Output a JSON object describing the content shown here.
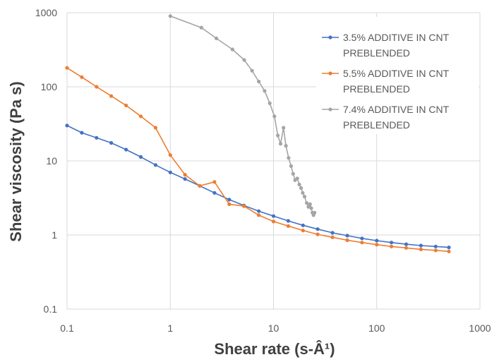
{
  "chart_data": {
    "type": "scatter",
    "title": "",
    "xlabel": "Shear rate (s-Â¹)",
    "ylabel": "Shear viscosity (Pa s)",
    "xscale": "log",
    "yscale": "log",
    "xlim": [
      0.1,
      1000
    ],
    "ylim": [
      0.1,
      1000
    ],
    "x_ticks": [
      "0.1",
      "1",
      "10",
      "100",
      "1000"
    ],
    "y_ticks": [
      "0.1",
      "1",
      "10",
      "100",
      "1000"
    ],
    "grid": true,
    "legend_position": "top-right",
    "series": [
      {
        "name_lines": [
          "3.5% ADDITIVE IN CNT",
          "PREBLENDED"
        ],
        "color": "#4472C4",
        "x": [
          0.1,
          0.1389,
          0.193,
          0.268,
          0.3728,
          0.518,
          0.7197,
          1.0,
          1.389,
          1.93,
          2.68,
          3.728,
          5.18,
          7.197,
          10.0,
          13.89,
          19.3,
          26.8,
          37.28,
          51.8,
          71.97,
          100.0,
          138.9,
          193.0,
          268.0,
          372.8,
          500.0
        ],
        "y": [
          30,
          24,
          20.5,
          17.5,
          14.2,
          11.3,
          8.8,
          7.0,
          5.7,
          4.6,
          3.7,
          3.0,
          2.5,
          2.1,
          1.8,
          1.55,
          1.35,
          1.2,
          1.07,
          0.98,
          0.9,
          0.84,
          0.79,
          0.75,
          0.72,
          0.7,
          0.68
        ]
      },
      {
        "name_lines": [
          "5.5% ADDITIVE IN CNT",
          "PREBLENDED"
        ],
        "color": "#ED7D31",
        "x": [
          0.1,
          0.1389,
          0.193,
          0.268,
          0.3728,
          0.518,
          0.7197,
          1.0,
          1.389,
          1.93,
          2.68,
          3.728,
          5.18,
          7.197,
          10.0,
          13.89,
          19.3,
          26.8,
          37.28,
          51.8,
          71.97,
          100.0,
          138.9,
          193.0,
          268.0,
          372.8,
          500.0
        ],
        "y": [
          180,
          135,
          100,
          75,
          56,
          40,
          28,
          12,
          6.5,
          4.6,
          5.2,
          2.6,
          2.45,
          1.85,
          1.52,
          1.32,
          1.15,
          1.02,
          0.93,
          0.85,
          0.79,
          0.74,
          0.7,
          0.67,
          0.64,
          0.62,
          0.6
        ]
      },
      {
        "name_lines": [
          "7.4% ADDITIVE IN CNT",
          "PREBLENDED"
        ],
        "color": "#A5A5A5",
        "x": [
          1.0,
          2.0,
          2.8,
          4.0,
          5.2,
          6.2,
          7.2,
          8.2,
          9.2,
          10.2,
          11.0,
          11.7,
          12.5,
          13.2,
          14.0,
          14.8,
          15.5,
          16.2,
          17.0,
          17.8,
          18.5,
          19.2,
          20.0,
          21.0,
          21.8,
          22.6,
          23.2,
          23.8,
          24.4,
          25.0
        ],
        "y": [
          900,
          630,
          450,
          320,
          230,
          165,
          118,
          88,
          60,
          40,
          22,
          17,
          28,
          16,
          11,
          8.5,
          6.7,
          5.5,
          5.8,
          4.8,
          4.3,
          3.7,
          3.3,
          2.7,
          2.4,
          2.6,
          2.3,
          2.0,
          1.85,
          2.0
        ]
      }
    ]
  }
}
